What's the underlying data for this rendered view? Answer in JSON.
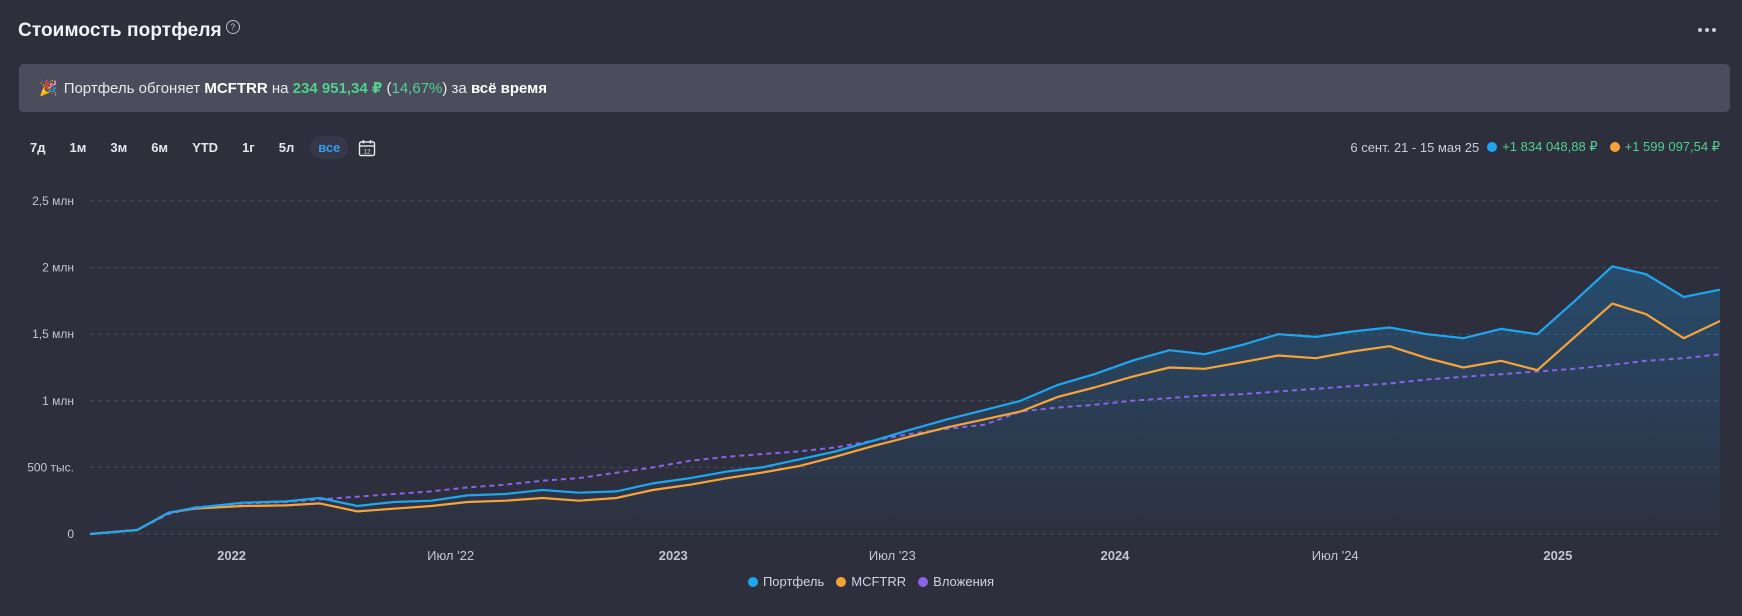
{
  "header": {
    "title": "Стоимость портфеля",
    "help_icon": "question-circle-icon",
    "more_icon": "more-horizontal-icon"
  },
  "banner": {
    "icon": "party-popper-icon",
    "prefix": "Портфель обгоняет",
    "benchmark": "MCFTRR",
    "on": "на",
    "amount": "234 951,34 ₽",
    "paren_open": "(",
    "percent": "14,67%",
    "paren_close": ")",
    "for": "за",
    "period": "всё время"
  },
  "periods": [
    {
      "label": "7д",
      "active": false
    },
    {
      "label": "1м",
      "active": false
    },
    {
      "label": "3м",
      "active": false
    },
    {
      "label": "6м",
      "active": false
    },
    {
      "label": "YTD",
      "active": false
    },
    {
      "label": "1г",
      "active": false
    },
    {
      "label": "5л",
      "active": false
    },
    {
      "label": "все",
      "active": true
    }
  ],
  "calendar_icon": "calendar-icon",
  "range": {
    "dates": "6 сент. 21 - 15 мая 25",
    "portfolio_change": "+1 834 048,88 ₽",
    "benchmark_change": "+1 599 097,54 ₽"
  },
  "colors": {
    "portfolio": "#1ea7f0",
    "benchmark": "#f7a33a",
    "investments": "#8a63e8",
    "positive": "#4fd08d",
    "active": "#2f9ff0"
  },
  "chart_data": {
    "type": "line",
    "x_domain": [
      "2021-09-06",
      "2025-05-15"
    ],
    "ylim": [
      0,
      2500000
    ],
    "ytick_values": [
      0,
      500000,
      1000000,
      1500000,
      2000000,
      2500000
    ],
    "yticks": [
      "0",
      "500 тыс.",
      "1 млн",
      "1,5 млн",
      "2 млн",
      "2,5 млн"
    ],
    "xticks": [
      {
        "date": "2022-01-01",
        "label": "2022",
        "bold": true
      },
      {
        "date": "2022-07-01",
        "label": "Июл '22",
        "bold": false
      },
      {
        "date": "2023-01-01",
        "label": "2023",
        "bold": true
      },
      {
        "date": "2023-07-01",
        "label": "Июл '23",
        "bold": false
      },
      {
        "date": "2024-01-01",
        "label": "2024",
        "bold": true
      },
      {
        "date": "2024-07-01",
        "label": "Июл '24",
        "bold": false
      },
      {
        "date": "2025-01-01",
        "label": "2025",
        "bold": true
      }
    ],
    "grid": true,
    "legend_position": "bottom-center",
    "x": [
      "2021-09-06",
      "2021-10-15",
      "2021-11-10",
      "2021-12-01",
      "2022-01-10",
      "2022-02-15",
      "2022-03-15",
      "2022-04-15",
      "2022-05-15",
      "2022-06-15",
      "2022-07-15",
      "2022-08-15",
      "2022-09-15",
      "2022-10-15",
      "2022-11-15",
      "2022-12-15",
      "2023-01-15",
      "2023-02-15",
      "2023-03-15",
      "2023-04-15",
      "2023-05-15",
      "2023-06-15",
      "2023-07-15",
      "2023-08-15",
      "2023-09-15",
      "2023-10-15",
      "2023-11-15",
      "2023-12-15",
      "2024-01-15",
      "2024-02-15",
      "2024-03-15",
      "2024-04-15",
      "2024-05-15",
      "2024-06-15",
      "2024-07-15",
      "2024-08-15",
      "2024-09-15",
      "2024-10-15",
      "2024-11-15",
      "2024-12-15",
      "2025-01-15",
      "2025-02-15",
      "2025-03-15",
      "2025-04-15",
      "2025-05-15"
    ],
    "series": [
      {
        "name": "Портфель",
        "color": "#1ea7f0",
        "dash": false,
        "values": [
          0,
          30000,
          160000,
          195000,
          235000,
          245000,
          270000,
          210000,
          240000,
          250000,
          290000,
          300000,
          330000,
          310000,
          320000,
          380000,
          420000,
          470000,
          500000,
          560000,
          620000,
          700000,
          780000,
          860000,
          930000,
          1000000,
          1120000,
          1200000,
          1300000,
          1380000,
          1350000,
          1420000,
          1500000,
          1480000,
          1520000,
          1550000,
          1500000,
          1470000,
          1540000,
          1500000,
          1750000,
          2010000,
          1950000,
          1780000,
          1834000
        ]
      },
      {
        "name": "MCFTRR",
        "color": "#f7a33a",
        "dash": false,
        "values": [
          0,
          30000,
          160000,
          190000,
          210000,
          215000,
          230000,
          170000,
          190000,
          210000,
          240000,
          250000,
          270000,
          250000,
          270000,
          330000,
          370000,
          420000,
          460000,
          510000,
          580000,
          660000,
          730000,
          800000,
          860000,
          920000,
          1030000,
          1100000,
          1180000,
          1250000,
          1240000,
          1290000,
          1340000,
          1320000,
          1370000,
          1410000,
          1320000,
          1250000,
          1300000,
          1230000,
          1480000,
          1730000,
          1650000,
          1470000,
          1599000
        ]
      },
      {
        "name": "Вложения",
        "color": "#8a63e8",
        "dash": true,
        "values": [
          0,
          30000,
          150000,
          200000,
          230000,
          240000,
          260000,
          280000,
          300000,
          320000,
          350000,
          370000,
          400000,
          420000,
          460000,
          500000,
          550000,
          580000,
          600000,
          620000,
          650000,
          700000,
          750000,
          790000,
          820000,
          920000,
          950000,
          970000,
          1000000,
          1020000,
          1040000,
          1050000,
          1070000,
          1090000,
          1110000,
          1130000,
          1160000,
          1180000,
          1200000,
          1220000,
          1240000,
          1270000,
          1300000,
          1320000,
          1350000
        ]
      }
    ]
  },
  "legend": [
    {
      "label": "Портфель"
    },
    {
      "label": "MCFTRR"
    },
    {
      "label": "Вложения"
    }
  ]
}
